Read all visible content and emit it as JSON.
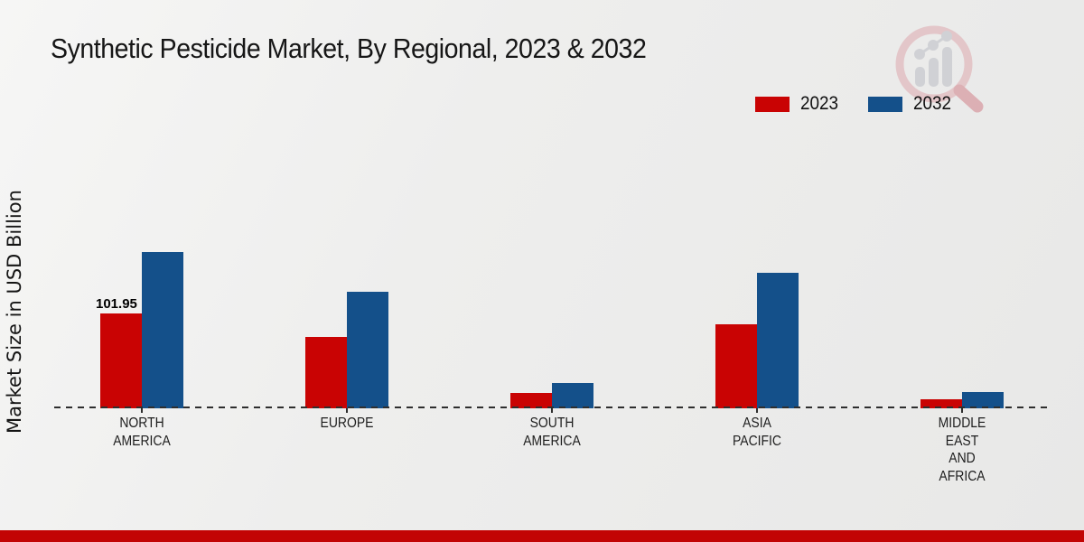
{
  "title": "Synthetic Pesticide Market, By Regional, 2023 & 2032",
  "legend": {
    "items": [
      {
        "label": "2023",
        "color": "#c90303"
      },
      {
        "label": "2032",
        "color": "#14508a"
      }
    ]
  },
  "chart_data": {
    "type": "bar",
    "title": "Synthetic Pesticide Market, By Regional, 2023 & 2032",
    "xlabel": "",
    "ylabel": "Market Size in USD Billion",
    "categories": [
      "NORTH AMERICA",
      "EUROPE",
      "SOUTH AMERICA",
      "ASIA PACIFIC",
      "MIDDLE EAST AND AFRICA"
    ],
    "series": [
      {
        "name": "2023",
        "color": "#c90303",
        "values": [
          101.95,
          76.7,
          16.5,
          90.3,
          9.7
        ]
      },
      {
        "name": "2032",
        "color": "#14508a",
        "values": [
          168.0,
          125.2,
          27.2,
          145.7,
          17.5
        ]
      }
    ],
    "data_labels": [
      {
        "series": "2023",
        "category": "NORTH AMERICA",
        "text": "101.95"
      }
    ],
    "ylim": [
      0,
      180
    ],
    "grid": false,
    "legend_position": "top-right",
    "baseline_style": "dashed"
  },
  "footer": {
    "band_color": "#c20404"
  }
}
